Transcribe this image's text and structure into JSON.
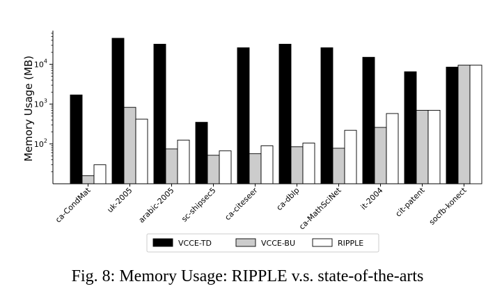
{
  "chart_data": {
    "type": "bar",
    "categories": [
      "ca-CondMat",
      "uk-2005",
      "arabic-2005",
      "sc-shipsec5",
      "ca-citeseer",
      "ca-dblp",
      "ca-MathSciNet",
      "it-2004",
      "cit-patent",
      "socfb-konect"
    ],
    "series": [
      {
        "name": "VCCE-TD",
        "color": "#000000",
        "values": [
          1700,
          45000,
          32000,
          350,
          26000,
          32000,
          26000,
          15000,
          6500,
          8500
        ]
      },
      {
        "name": "VCCE-BU",
        "color": "#cccccc",
        "values": [
          16,
          830,
          75,
          52,
          57,
          85,
          78,
          260,
          700,
          9500
        ]
      },
      {
        "name": "RIPPLE",
        "color": "#ffffff",
        "values": [
          30,
          420,
          125,
          67,
          90,
          105,
          220,
          580,
          700,
          9500
        ]
      }
    ],
    "ylabel": "Memory Usage (MB)",
    "yscale": "log",
    "ylim": [
      10,
      70000
    ],
    "yticks": [
      {
        "value": 100,
        "base": "10",
        "exp": "2"
      },
      {
        "value": 1000,
        "base": "10",
        "exp": "3"
      },
      {
        "value": 10000,
        "base": "10",
        "exp": "4"
      }
    ],
    "legend": "bottom-center",
    "grid": false
  },
  "caption": "Fig. 8: Memory Usage: RIPPLE v.s. state-of-the-arts"
}
